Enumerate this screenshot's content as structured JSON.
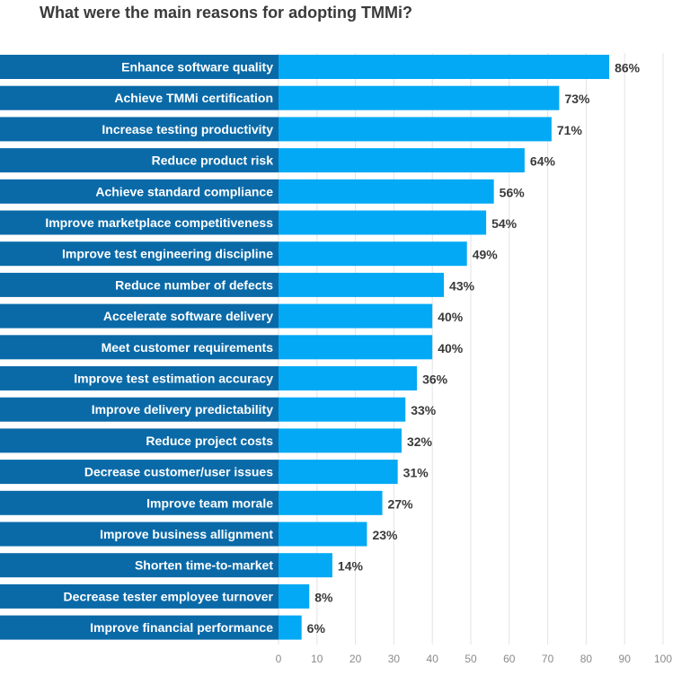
{
  "chart_data": {
    "type": "bar",
    "orientation": "horizontal",
    "title": "What were the main reasons for adopting TMMi?",
    "categories": [
      "Enhance software quality",
      "Achieve TMMi certification",
      "Increase testing productivity",
      "Reduce product risk",
      "Achieve standard compliance",
      "Improve marketplace competitiveness",
      "Improve test engineering discipline",
      "Reduce number of defects",
      "Accelerate software delivery",
      "Meet customer requirements",
      "Improve test estimation accuracy",
      "Improve delivery predictability",
      "Reduce project costs",
      "Decrease customer/user issues",
      "Improve team morale",
      "Improve business allignment",
      "Shorten time-to-market",
      "Decrease tester employee turnover",
      "Improve financial performance"
    ],
    "values": [
      86,
      73,
      71,
      64,
      56,
      54,
      49,
      43,
      40,
      40,
      36,
      33,
      32,
      31,
      27,
      23,
      14,
      8,
      6
    ],
    "value_labels": [
      "86%",
      "73%",
      "71%",
      "64%",
      "56%",
      "54%",
      "49%",
      "43%",
      "40%",
      "40%",
      "36%",
      "33%",
      "32%",
      "31%",
      "27%",
      "23%",
      "14%",
      "8%",
      "6%"
    ],
    "xticks": [
      0,
      10,
      20,
      30,
      40,
      50,
      60,
      70,
      80,
      90,
      100
    ],
    "xlim": [
      0,
      100
    ],
    "xlabel": "",
    "ylabel": "",
    "grid": true
  },
  "colors": {
    "label_band": "#0a6aa8",
    "bar": "#03a9f4",
    "grid": "#e3e3e3",
    "value_text": "#3a3a3a",
    "tick_text": "#8a8a8a"
  }
}
